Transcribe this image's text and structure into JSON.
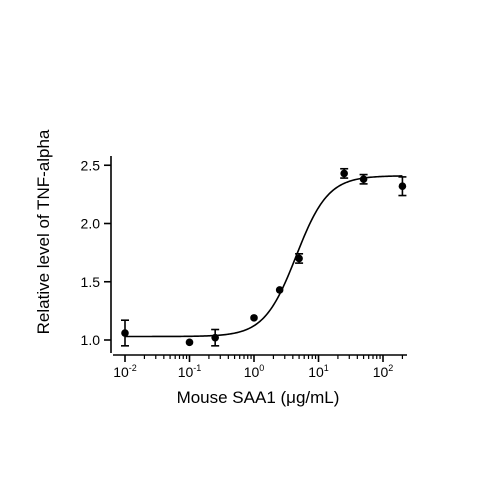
{
  "chart_data": {
    "type": "scatter",
    "title": "",
    "xlabel": "Mouse SAA1 (μg/mL)",
    "ylabel": "Relative level of TNF-alpha",
    "x_scale": "log10",
    "xlim": [
      0.01,
      200
    ],
    "ylim": [
      0.95,
      2.6
    ],
    "x_ticks": [
      {
        "base": "10",
        "exp": "-2",
        "value": 0.01
      },
      {
        "base": "10",
        "exp": "-1",
        "value": 0.1
      },
      {
        "base": "10",
        "exp": "0",
        "value": 1
      },
      {
        "base": "10",
        "exp": "1",
        "value": 10
      },
      {
        "base": "10",
        "exp": "2",
        "value": 100
      }
    ],
    "y_ticks": [
      {
        "label": "1.0",
        "value": 1.0
      },
      {
        "label": "1.5",
        "value": 1.5
      },
      {
        "label": "2.0",
        "value": 2.0
      },
      {
        "label": "2.5",
        "value": 2.5
      }
    ],
    "grid": false,
    "legend": "none",
    "series": [
      {
        "points": [
          {
            "x": 0.01,
            "y": 1.06,
            "err": 0.11
          },
          {
            "x": 0.1,
            "y": 0.98,
            "err": 0.0
          },
          {
            "x": 0.25,
            "y": 1.02,
            "err": 0.07
          },
          {
            "x": 1.0,
            "y": 1.19,
            "err": 0.0
          },
          {
            "x": 2.5,
            "y": 1.43,
            "err": 0.0
          },
          {
            "x": 5.0,
            "y": 1.7,
            "err": 0.04
          },
          {
            "x": 25,
            "y": 2.43,
            "err": 0.04
          },
          {
            "x": 50,
            "y": 2.38,
            "err": 0.04
          },
          {
            "x": 200,
            "y": 2.32,
            "err": 0.08
          }
        ],
        "fit": {
          "model": "four-parameter logistic",
          "bottom": 1.03,
          "top": 2.41,
          "ec50": 4.5,
          "hill": 1.75
        }
      }
    ],
    "colors": {
      "marker": "#000000",
      "line": "#000000",
      "axis": "#000000"
    }
  }
}
